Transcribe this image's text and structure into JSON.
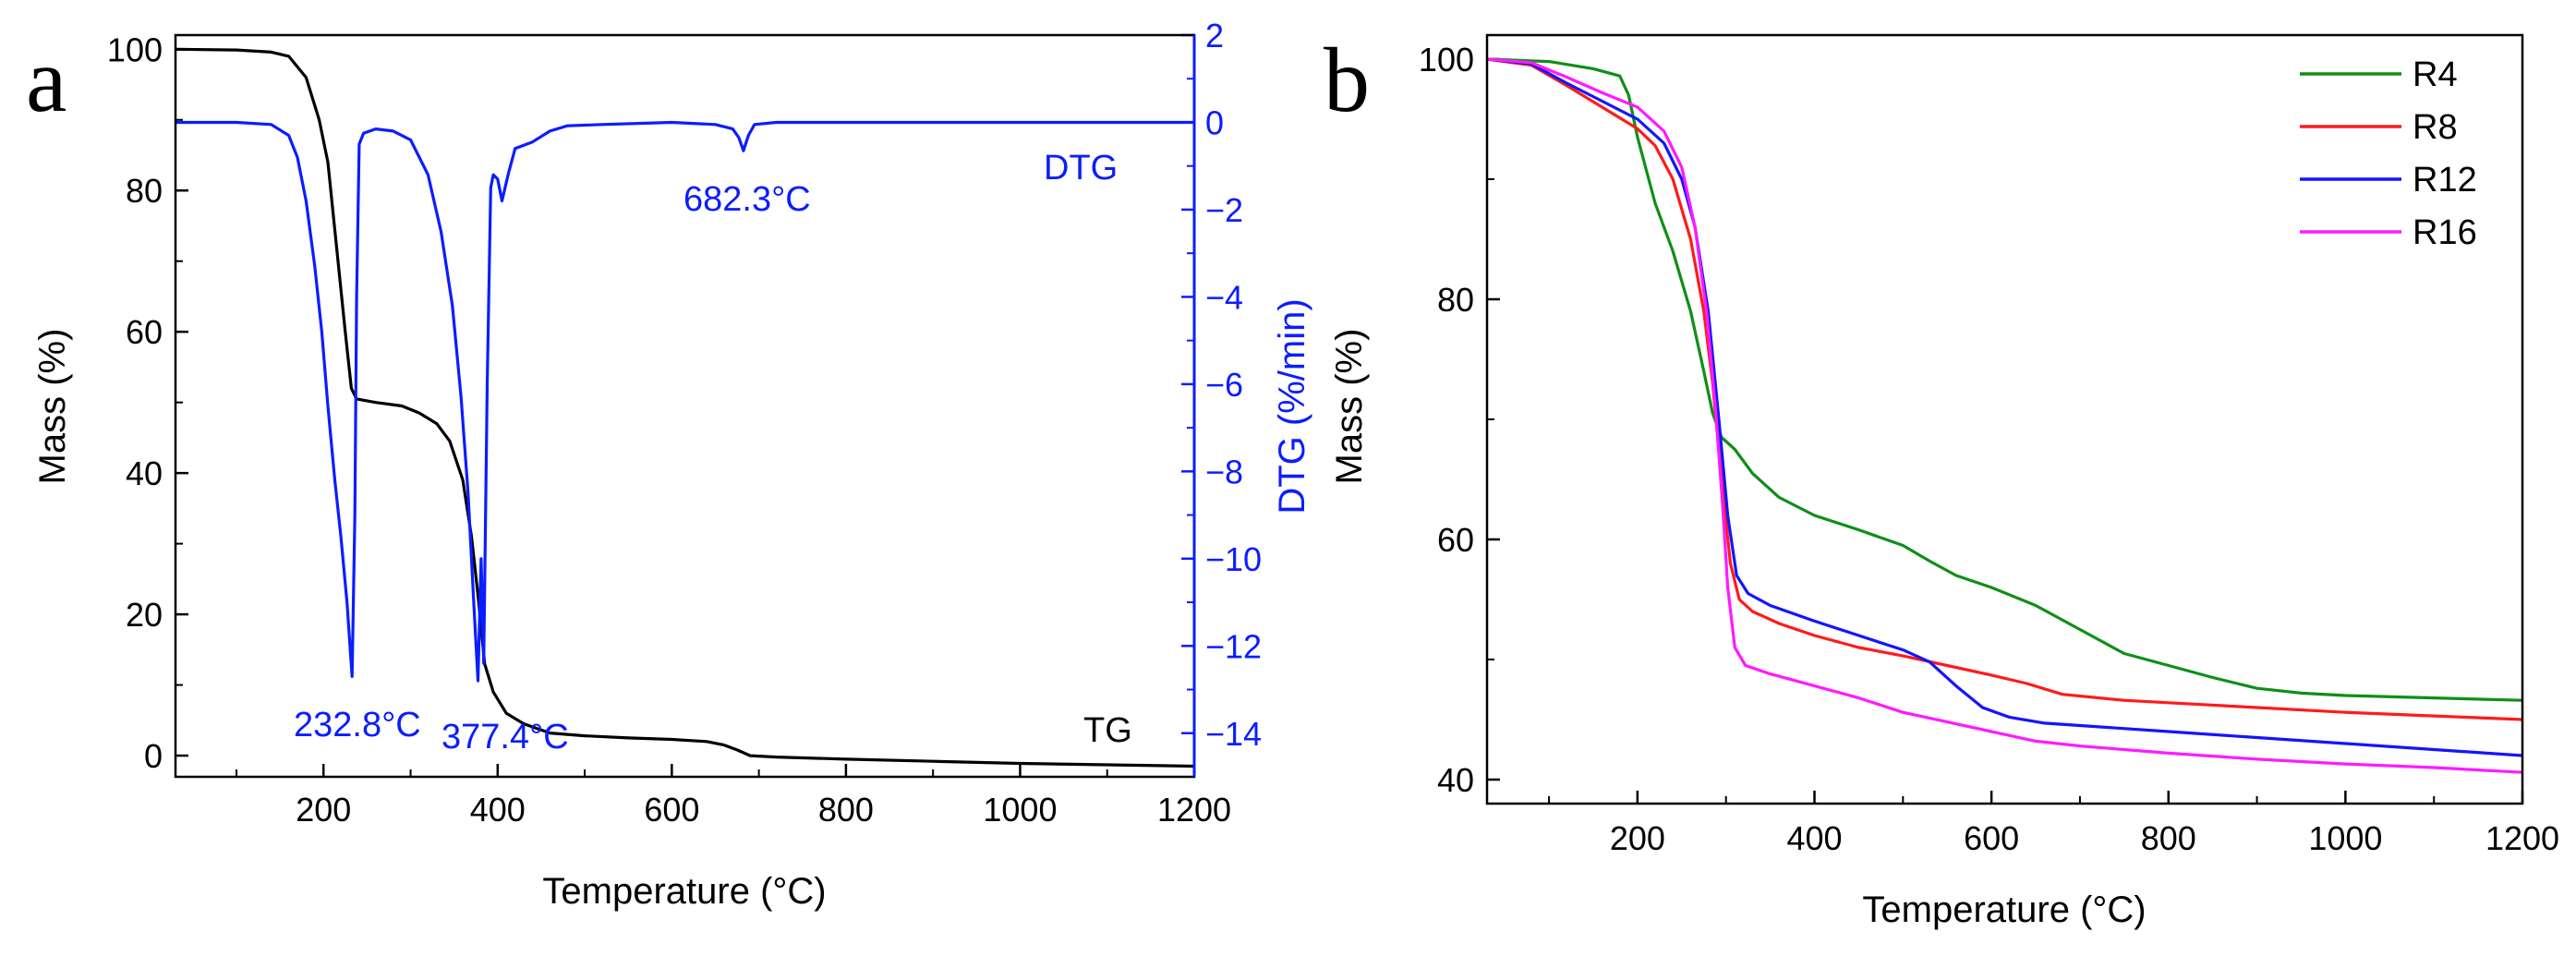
{
  "chart_data": [
    {
      "panel": "a",
      "type": "line",
      "xlabel": "Temperature (°C)",
      "ylabel": "Mass (%)",
      "y2label": "DTG (%/min)",
      "xlim": [
        30,
        1200
      ],
      "ylim": [
        -3,
        102
      ],
      "y2lim": [
        -15,
        2
      ],
      "x_ticks": [
        200,
        400,
        600,
        800,
        1000,
        1200
      ],
      "y_ticks": [
        0,
        20,
        40,
        60,
        80,
        100
      ],
      "y2_ticks": [
        2,
        0,
        -2,
        -4,
        -6,
        -8,
        -10,
        -12,
        -14
      ],
      "annotations": [
        {
          "id": "peak1",
          "text": "232.8°C",
          "x": 232.8,
          "y": -12.7
        },
        {
          "id": "peak2",
          "text": "377.4°C",
          "x": 377.4,
          "y": -12.8
        },
        {
          "id": "peak3",
          "text": "682.3°C",
          "x": 682.3,
          "y": -0.6
        }
      ],
      "series_labels": {
        "tg": "TG",
        "dtg": "DTG"
      },
      "series": [
        {
          "name": "TG",
          "axis": "left",
          "color": "#000000",
          "points": [
            [
              30,
              100
            ],
            [
              100,
              99.9
            ],
            [
              140,
              99.6
            ],
            [
              160,
              99
            ],
            [
              180,
              96
            ],
            [
              195,
              90
            ],
            [
              205,
              84
            ],
            [
              215,
              72
            ],
            [
              225,
              60
            ],
            [
              232,
              52
            ],
            [
              238,
              50.5
            ],
            [
              260,
              50
            ],
            [
              290,
              49.5
            ],
            [
              310,
              48.5
            ],
            [
              330,
              47
            ],
            [
              345,
              44.5
            ],
            [
              360,
              39
            ],
            [
              370,
              31
            ],
            [
              378,
              22
            ],
            [
              385,
              13
            ],
            [
              395,
              9
            ],
            [
              410,
              6
            ],
            [
              430,
              4.5
            ],
            [
              460,
              3.2
            ],
            [
              500,
              2.8
            ],
            [
              550,
              2.5
            ],
            [
              600,
              2.3
            ],
            [
              640,
              2
            ],
            [
              660,
              1.5
            ],
            [
              675,
              0.8
            ],
            [
              690,
              0
            ],
            [
              720,
              -0.2
            ],
            [
              800,
              -0.5
            ],
            [
              900,
              -0.8
            ],
            [
              1000,
              -1.1
            ],
            [
              1100,
              -1.3
            ],
            [
              1200,
              -1.5
            ]
          ]
        },
        {
          "name": "DTG",
          "axis": "right",
          "color": "#0b1dff",
          "points": [
            [
              30,
              0
            ],
            [
              100,
              0
            ],
            [
              140,
              -0.05
            ],
            [
              160,
              -0.3
            ],
            [
              170,
              -0.8
            ],
            [
              180,
              -1.8
            ],
            [
              190,
              -3.3
            ],
            [
              198,
              -4.8
            ],
            [
              205,
              -6.5
            ],
            [
              213,
              -8.2
            ],
            [
              220,
              -9.5
            ],
            [
              227,
              -11
            ],
            [
              232.8,
              -12.7
            ],
            [
              236,
              -9
            ],
            [
              238,
              -4
            ],
            [
              241,
              -0.5
            ],
            [
              246,
              -0.25
            ],
            [
              260,
              -0.15
            ],
            [
              280,
              -0.2
            ],
            [
              300,
              -0.4
            ],
            [
              320,
              -1.2
            ],
            [
              335,
              -2.5
            ],
            [
              348,
              -4.2
            ],
            [
              358,
              -6.3
            ],
            [
              366,
              -8.5
            ],
            [
              372,
              -10.8
            ],
            [
              377.4,
              -12.8
            ],
            [
              381,
              -10
            ],
            [
              384,
              -12.4
            ],
            [
              388,
              -6
            ],
            [
              392,
              -1.5
            ],
            [
              395,
              -1.2
            ],
            [
              400,
              -1.3
            ],
            [
              405,
              -1.8
            ],
            [
              412,
              -1.2
            ],
            [
              420,
              -0.6
            ],
            [
              440,
              -0.45
            ],
            [
              460,
              -0.2
            ],
            [
              480,
              -0.08
            ],
            [
              520,
              -0.05
            ],
            [
              600,
              0
            ],
            [
              650,
              -0.05
            ],
            [
              670,
              -0.15
            ],
            [
              677,
              -0.35
            ],
            [
              682.3,
              -0.65
            ],
            [
              688,
              -0.3
            ],
            [
              695,
              -0.05
            ],
            [
              720,
              0
            ],
            [
              800,
              0
            ],
            [
              900,
              0
            ],
            [
              1000,
              0
            ],
            [
              1100,
              0
            ],
            [
              1200,
              0
            ]
          ]
        }
      ]
    },
    {
      "panel": "b",
      "type": "line",
      "xlabel": "Temperature (°C)",
      "ylabel": "Mass (%)",
      "xlim": [
        30,
        1200
      ],
      "ylim": [
        38,
        102
      ],
      "x_ticks": [
        200,
        400,
        600,
        800,
        1000,
        1200
      ],
      "y_ticks": [
        40,
        60,
        80,
        100
      ],
      "legend": {
        "position": "top-right",
        "entries": [
          "R4",
          "R8",
          "R12",
          "R16"
        ]
      },
      "series": [
        {
          "name": "R4",
          "color": "#0f8f17",
          "points": [
            [
              30,
              100
            ],
            [
              100,
              99.8
            ],
            [
              150,
              99.2
            ],
            [
              180,
              98.6
            ],
            [
              190,
              97
            ],
            [
              200,
              93.5
            ],
            [
              220,
              88
            ],
            [
              240,
              84
            ],
            [
              260,
              79
            ],
            [
              275,
              74
            ],
            [
              285,
              70.5
            ],
            [
              295,
              68.5
            ],
            [
              310,
              67.5
            ],
            [
              330,
              65.5
            ],
            [
              360,
              63.5
            ],
            [
              400,
              62
            ],
            [
              450,
              60.8
            ],
            [
              500,
              59.5
            ],
            [
              530,
              58.2
            ],
            [
              560,
              57
            ],
            [
              600,
              56
            ],
            [
              650,
              54.5
            ],
            [
              700,
              52.5
            ],
            [
              750,
              50.5
            ],
            [
              800,
              49.5
            ],
            [
              850,
              48.5
            ],
            [
              900,
              47.6
            ],
            [
              950,
              47.2
            ],
            [
              1000,
              47
            ],
            [
              1100,
              46.8
            ],
            [
              1200,
              46.6
            ]
          ]
        },
        {
          "name": "R8",
          "color": "#ff1a1a",
          "points": [
            [
              30,
              100
            ],
            [
              80,
              99.5
            ],
            [
              120,
              97.8
            ],
            [
              160,
              96
            ],
            [
              200,
              94.2
            ],
            [
              220,
              92.8
            ],
            [
              240,
              90
            ],
            [
              260,
              85
            ],
            [
              275,
              79
            ],
            [
              285,
              73
            ],
            [
              295,
              65
            ],
            [
              305,
              58
            ],
            [
              315,
              55
            ],
            [
              330,
              54
            ],
            [
              360,
              53
            ],
            [
              400,
              52
            ],
            [
              450,
              51
            ],
            [
              500,
              50.3
            ],
            [
              550,
              49.5
            ],
            [
              600,
              48.7
            ],
            [
              640,
              48
            ],
            [
              680,
              47.1
            ],
            [
              750,
              46.6
            ],
            [
              800,
              46.4
            ],
            [
              900,
              46
            ],
            [
              1000,
              45.6
            ],
            [
              1100,
              45.3
            ],
            [
              1200,
              45
            ]
          ]
        },
        {
          "name": "R12",
          "color": "#1414ff",
          "points": [
            [
              30,
              100
            ],
            [
              80,
              99.6
            ],
            [
              120,
              98
            ],
            [
              160,
              96.5
            ],
            [
              200,
              95
            ],
            [
              230,
              93
            ],
            [
              250,
              90
            ],
            [
              265,
              86
            ],
            [
              280,
              79
            ],
            [
              292,
              70
            ],
            [
              302,
              62
            ],
            [
              312,
              57
            ],
            [
              325,
              55.5
            ],
            [
              350,
              54.5
            ],
            [
              400,
              53.2
            ],
            [
              450,
              52
            ],
            [
              500,
              50.8
            ],
            [
              530,
              49.8
            ],
            [
              560,
              47.8
            ],
            [
              590,
              46
            ],
            [
              620,
              45.2
            ],
            [
              660,
              44.7
            ],
            [
              700,
              44.5
            ],
            [
              800,
              44
            ],
            [
              900,
              43.5
            ],
            [
              1000,
              43
            ],
            [
              1100,
              42.5
            ],
            [
              1200,
              42
            ]
          ]
        },
        {
          "name": "R16",
          "color": "#ff1aff",
          "points": [
            [
              30,
              100
            ],
            [
              80,
              99.7
            ],
            [
              120,
              98.5
            ],
            [
              160,
              97.2
            ],
            [
              200,
              96
            ],
            [
              230,
              94
            ],
            [
              250,
              91
            ],
            [
              265,
              86
            ],
            [
              278,
              79
            ],
            [
              288,
              71
            ],
            [
              296,
              63
            ],
            [
              302,
              56
            ],
            [
              310,
              51
            ],
            [
              322,
              49.5
            ],
            [
              350,
              48.8
            ],
            [
              400,
              47.8
            ],
            [
              450,
              46.8
            ],
            [
              500,
              45.6
            ],
            [
              550,
              44.8
            ],
            [
              600,
              44
            ],
            [
              650,
              43.2
            ],
            [
              700,
              42.8
            ],
            [
              800,
              42.2
            ],
            [
              900,
              41.7
            ],
            [
              1000,
              41.3
            ],
            [
              1100,
              41
            ],
            [
              1200,
              40.6
            ]
          ]
        }
      ]
    }
  ]
}
